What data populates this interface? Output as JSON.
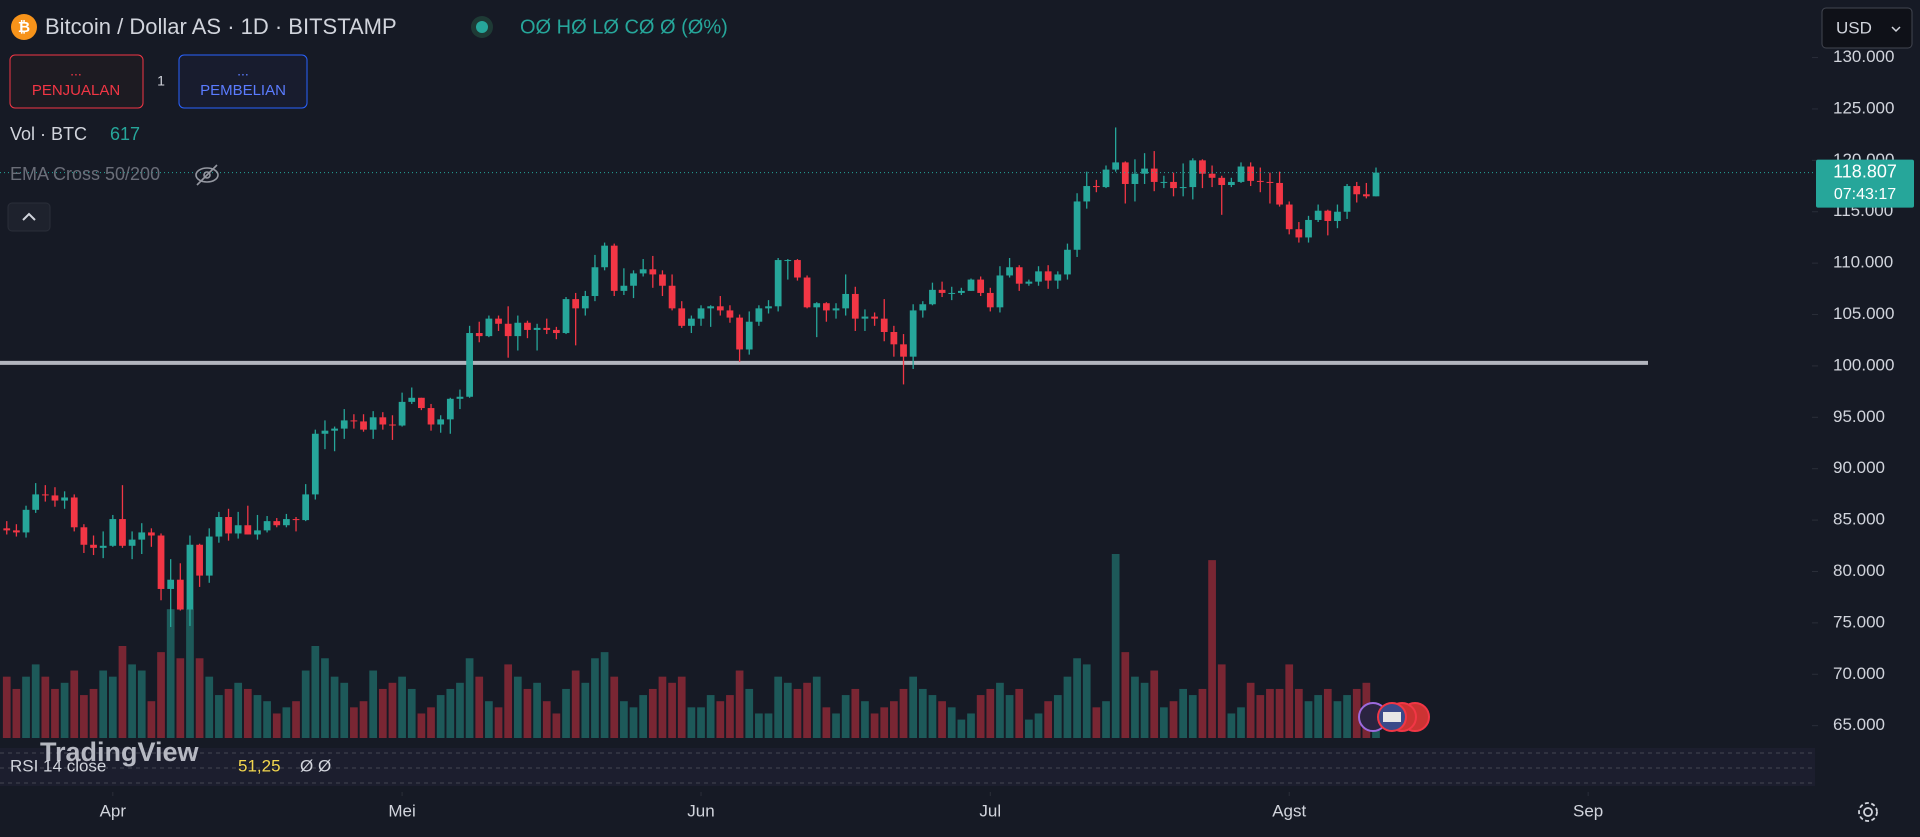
{
  "header": {
    "symbol": "Bitcoin / Dollar AS · 1D · BITSTAMP",
    "ohlc": "OØ HØ LØ CØ Ø (Ø%)",
    "currency": "USD"
  },
  "trade": {
    "sell_price": "...",
    "sell": "PENJUALAN",
    "spread": "1",
    "buy_price": "...",
    "buy": "PEMBELIAN"
  },
  "indicators": {
    "volume_label": "Vol · BTC",
    "volume_value": 617,
    "ema": "EMA Cross 50/200",
    "rsi_label": "RSI 14 close",
    "rsi_value": {
      "value": 51.25,
      "label": "51,25"
    },
    "rsi_extra": "Ø Ø"
  },
  "watermark": "TradingView",
  "chart_data": {
    "type": "candlestick",
    "up_color": "#26a69a",
    "down_color": "#f23645",
    "ylim": [
      63800,
      135600
    ],
    "yticks": [
      {
        "value": 65000,
        "label": "65.000"
      },
      {
        "value": 70000,
        "label": "70.000"
      },
      {
        "value": 75000,
        "label": "75.000"
      },
      {
        "value": 80000,
        "label": "80.000"
      },
      {
        "value": 85000,
        "label": "85.000"
      },
      {
        "value": 90000,
        "label": "90.000"
      },
      {
        "value": 95000,
        "label": "95.000"
      },
      {
        "value": 100000,
        "label": "100.000"
      },
      {
        "value": 105000,
        "label": "105.000"
      },
      {
        "value": 110000,
        "label": "110.000"
      },
      {
        "value": 115000,
        "label": "115.000"
      },
      {
        "value": 120000,
        "label": "120.000"
      },
      {
        "value": 125000,
        "label": "125.000"
      },
      {
        "value": 130000,
        "label": "130.000"
      }
    ],
    "xlim": [
      -0.7,
      186.8
    ],
    "xticks": [
      {
        "value": 11,
        "label": "Apr"
      },
      {
        "value": 41,
        "label": "Mei"
      },
      {
        "value": 72,
        "label": "Jun"
      },
      {
        "value": 102,
        "label": "Jul"
      },
      {
        "value": 133,
        "label": "Agst"
      },
      {
        "value": 164,
        "label": "Sep"
      }
    ],
    "horizontal_line": 100300,
    "last_price": {
      "value": 118807,
      "label": "118.807"
    },
    "countdown": "07:43:17",
    "candles": [
      [
        84200,
        84900,
        83600,
        84000
      ],
      [
        84000,
        84600,
        83400,
        83800
      ],
      [
        83800,
        86400,
        83300,
        86000
      ],
      [
        86000,
        88600,
        85700,
        87500
      ],
      [
        87500,
        88400,
        86800,
        87400
      ],
      [
        87400,
        88200,
        86300,
        86900
      ],
      [
        86900,
        87800,
        86100,
        87200
      ],
      [
        87200,
        87500,
        83900,
        84300
      ],
      [
        84300,
        84600,
        81800,
        82600
      ],
      [
        82600,
        83500,
        81600,
        82300
      ],
      [
        82300,
        83900,
        81300,
        82500
      ],
      [
        82500,
        85500,
        82400,
        85100
      ],
      [
        85100,
        88400,
        82300,
        82500
      ],
      [
        82500,
        83900,
        81200,
        83100
      ],
      [
        83100,
        84700,
        81700,
        83800
      ],
      [
        83800,
        84200,
        82400,
        83500
      ],
      [
        83500,
        83700,
        77200,
        78300
      ],
      [
        78300,
        81200,
        74600,
        79200
      ],
      [
        79200,
        80800,
        76200,
        76300
      ],
      [
        76300,
        83500,
        74700,
        82600
      ],
      [
        82600,
        82700,
        78500,
        79600
      ],
      [
        79600,
        84200,
        78900,
        83400
      ],
      [
        83400,
        85800,
        82800,
        85300
      ],
      [
        85300,
        86100,
        83000,
        83700
      ],
      [
        83700,
        85800,
        83200,
        84500
      ],
      [
        84500,
        86400,
        83600,
        83600
      ],
      [
        83600,
        85500,
        83100,
        84000
      ],
      [
        84000,
        85400,
        83800,
        84900
      ],
      [
        84900,
        85200,
        84300,
        84500
      ],
      [
        84500,
        85600,
        84300,
        85100
      ],
      [
        85100,
        85300,
        83900,
        85000
      ],
      [
        85000,
        88500,
        84900,
        87500
      ],
      [
        87500,
        93800,
        87000,
        93400
      ],
      [
        93400,
        94700,
        91900,
        93700
      ],
      [
        93700,
        94100,
        91700,
        93900
      ],
      [
        93900,
        95800,
        92900,
        94700
      ],
      [
        94700,
        95300,
        93900,
        94600
      ],
      [
        94600,
        95300,
        93600,
        93800
      ],
      [
        93800,
        95600,
        92900,
        95000
      ],
      [
        95000,
        95500,
        93800,
        94300
      ],
      [
        94300,
        95200,
        92800,
        94200
      ],
      [
        94200,
        97400,
        94100,
        96500
      ],
      [
        96500,
        97900,
        96300,
        96900
      ],
      [
        96900,
        96900,
        95700,
        95900
      ],
      [
        95900,
        96300,
        93700,
        94300
      ],
      [
        94300,
        95200,
        93500,
        94800
      ],
      [
        94800,
        96900,
        93400,
        96800
      ],
      [
        96800,
        97700,
        95800,
        97000
      ],
      [
        97000,
        103900,
        96900,
        103200
      ],
      [
        103200,
        104300,
        102300,
        102900
      ],
      [
        102900,
        104900,
        102800,
        104600
      ],
      [
        104600,
        104900,
        103400,
        104100
      ],
      [
        104100,
        105800,
        100800,
        102900
      ],
      [
        102900,
        104900,
        101500,
        104200
      ],
      [
        104200,
        104400,
        102700,
        103500
      ],
      [
        103500,
        104100,
        101500,
        103700
      ],
      [
        103700,
        104600,
        103100,
        103500
      ],
      [
        103500,
        103800,
        102600,
        103200
      ],
      [
        103200,
        106700,
        103100,
        106500
      ],
      [
        106500,
        107100,
        102000,
        105600
      ],
      [
        105600,
        107300,
        104900,
        106800
      ],
      [
        106800,
        110800,
        106300,
        109600
      ],
      [
        109600,
        112000,
        109300,
        111700
      ],
      [
        111700,
        111900,
        106800,
        107300
      ],
      [
        107300,
        109500,
        106900,
        107800
      ],
      [
        107800,
        109300,
        106600,
        109000
      ],
      [
        109000,
        110400,
        108700,
        109400
      ],
      [
        109400,
        110700,
        107600,
        108900
      ],
      [
        108900,
        109300,
        106800,
        107800
      ],
      [
        107800,
        108900,
        105400,
        105600
      ],
      [
        105600,
        106300,
        103700,
        103900
      ],
      [
        103900,
        104900,
        103200,
        104600
      ],
      [
        104600,
        105900,
        103900,
        105600
      ],
      [
        105600,
        105900,
        103800,
        105800
      ],
      [
        105800,
        106800,
        104900,
        105400
      ],
      [
        105400,
        105900,
        104200,
        104700
      ],
      [
        104700,
        105000,
        100400,
        101600
      ],
      [
        101600,
        105300,
        101100,
        104300
      ],
      [
        104300,
        105900,
        103900,
        105600
      ],
      [
        105600,
        106400,
        105100,
        105800
      ],
      [
        105800,
        110500,
        105300,
        110300
      ],
      [
        110300,
        110400,
        108400,
        110300
      ],
      [
        110300,
        110400,
        108300,
        108600
      ],
      [
        108600,
        108800,
        105600,
        105700
      ],
      [
        105700,
        106200,
        102800,
        106100
      ],
      [
        106100,
        106200,
        104300,
        105400
      ],
      [
        105400,
        106100,
        104600,
        105600
      ],
      [
        105600,
        108900,
        104900,
        107000
      ],
      [
        107000,
        107700,
        103400,
        104600
      ],
      [
        104600,
        105500,
        103400,
        104800
      ],
      [
        104800,
        105200,
        103900,
        104600
      ],
      [
        104600,
        106500,
        102400,
        103300
      ],
      [
        103300,
        103900,
        100900,
        102100
      ],
      [
        102100,
        103100,
        98200,
        100900
      ],
      [
        100900,
        106000,
        99700,
        105400
      ],
      [
        105400,
        106300,
        104700,
        106000
      ],
      [
        106000,
        108100,
        105900,
        107400
      ],
      [
        107400,
        108200,
        106700,
        107100
      ],
      [
        107100,
        107700,
        106400,
        107100
      ],
      [
        107100,
        107600,
        106900,
        107300
      ],
      [
        107300,
        108500,
        107300,
        108400
      ],
      [
        108400,
        108700,
        106800,
        107100
      ],
      [
        107100,
        107600,
        105300,
        105700
      ],
      [
        105700,
        109700,
        105200,
        108800
      ],
      [
        108800,
        110500,
        108600,
        109600
      ],
      [
        109600,
        109800,
        107300,
        108000
      ],
      [
        108000,
        108400,
        107800,
        108200
      ],
      [
        108200,
        109700,
        107800,
        109200
      ],
      [
        109200,
        109800,
        107500,
        108300
      ],
      [
        108300,
        109200,
        107500,
        108900
      ],
      [
        108900,
        111900,
        108400,
        111300
      ],
      [
        111300,
        116800,
        110600,
        116000
      ],
      [
        116000,
        118900,
        115300,
        117500
      ],
      [
        117500,
        118100,
        116900,
        117400
      ],
      [
        117400,
        119500,
        117300,
        119100
      ],
      [
        119100,
        123200,
        118900,
        119800
      ],
      [
        119800,
        119900,
        115800,
        117700
      ],
      [
        117700,
        120100,
        116000,
        118700
      ],
      [
        118700,
        120700,
        117700,
        119200
      ],
      [
        119200,
        120900,
        117000,
        117900
      ],
      [
        117900,
        118500,
        117300,
        117900
      ],
      [
        117900,
        118800,
        116500,
        117300
      ],
      [
        117300,
        119700,
        116500,
        117400
      ],
      [
        117400,
        120200,
        116200,
        120000
      ],
      [
        120000,
        120100,
        117300,
        118700
      ],
      [
        118700,
        119500,
        117400,
        118300
      ],
      [
        118300,
        118500,
        114700,
        117600
      ],
      [
        117600,
        118300,
        117400,
        117900
      ],
      [
        117900,
        119800,
        117800,
        119400
      ],
      [
        119400,
        119800,
        117500,
        118000
      ],
      [
        118000,
        119300,
        116900,
        117900
      ],
      [
        117900,
        118800,
        115800,
        117800
      ],
      [
        117800,
        118900,
        115500,
        115700
      ],
      [
        115700,
        116000,
        112800,
        113300
      ],
      [
        113300,
        114000,
        112000,
        112500
      ],
      [
        112500,
        114600,
        112000,
        114200
      ],
      [
        114200,
        115700,
        114000,
        115100
      ],
      [
        115100,
        115200,
        112700,
        114100
      ],
      [
        114100,
        115700,
        113400,
        115000
      ],
      [
        115000,
        117700,
        114300,
        117500
      ],
      [
        117500,
        117900,
        115900,
        116700
      ],
      [
        116700,
        117800,
        116300,
        116500
      ],
      [
        116500,
        119300,
        116500,
        118807
      ]
    ],
    "volume": [
      1500,
      1200,
      1500,
      1800,
      1500,
      1200,
      1350,
      1650,
      1050,
      1200,
      1650,
      1500,
      2250,
      1800,
      1650,
      900,
      2100,
      3150,
      1950,
      3150,
      1950,
      1500,
      1050,
      1200,
      1350,
      1200,
      1050,
      900,
      600,
      750,
      900,
      1650,
      2250,
      1950,
      1500,
      1350,
      750,
      900,
      1650,
      1200,
      1350,
      1500,
      1200,
      600,
      750,
      1050,
      1200,
      1350,
      1950,
      1500,
      900,
      750,
      1800,
      1500,
      1200,
      1350,
      900,
      600,
      1200,
      1650,
      1350,
      1950,
      2100,
      1500,
      900,
      750,
      1050,
      1200,
      1500,
      1350,
      1500,
      750,
      750,
      1050,
      900,
      1050,
      1650,
      1200,
      600,
      600,
      1500,
      1350,
      1200,
      1350,
      1500,
      750,
      600,
      1050,
      1200,
      900,
      600,
      750,
      900,
      1200,
      1500,
      1200,
      1050,
      900,
      750,
      450,
      600,
      1050,
      1200,
      1350,
      1050,
      1200,
      450,
      600,
      900,
      1050,
      1500,
      1950,
      1800,
      750,
      900,
      4500,
      2100,
      1500,
      1350,
      1650,
      750,
      900,
      1200,
      1050,
      1200,
      4350,
      1800,
      600,
      750,
      1350,
      1050,
      1200,
      1200,
      1800,
      1200,
      900,
      1050,
      1200,
      900,
      1050,
      1200,
      1350,
      617
    ]
  }
}
